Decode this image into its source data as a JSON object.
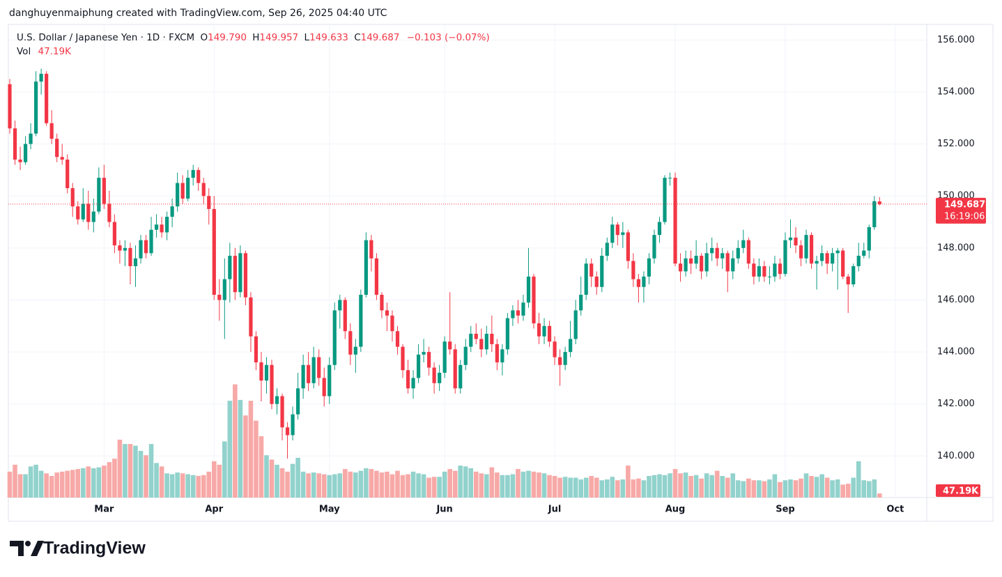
{
  "header": {
    "caption": "danghuyenmaiphung created with TradingView.com, Sep 26, 2025 04:40 UTC",
    "logo": "TradingView"
  },
  "legend": {
    "symbol": "U.S. Dollar / Japanese Yen · 1D · FXCM",
    "open_key": "O",
    "open": "149.790",
    "high_key": "H",
    "high": "149.957",
    "low_key": "L",
    "low": "149.633",
    "close_key": "C",
    "close": "149.687",
    "change": "−0.103 (−0.07%)",
    "volume_key": "Vol",
    "volume": "47.19K"
  },
  "chart_data": {
    "type": "candlestick",
    "up_color": "#089981",
    "down_color": "#f23645",
    "up_volume_color": "#92d2cc",
    "down_volume_color": "#f7a9a7",
    "ylim": [
      138.4,
      156.6
    ],
    "yticks": [
      {
        "value": 140,
        "label": "140.000"
      },
      {
        "value": 142,
        "label": "142.000"
      },
      {
        "value": 144,
        "label": "144.000"
      },
      {
        "value": 146,
        "label": "146.000"
      },
      {
        "value": 148,
        "label": "148.000"
      },
      {
        "value": 150,
        "label": "150.000"
      },
      {
        "value": 152,
        "label": "152.000"
      },
      {
        "value": 154,
        "label": "154.000"
      },
      {
        "value": 156,
        "label": "156.000"
      }
    ],
    "xticks": [
      {
        "value": 18,
        "label": "Mar"
      },
      {
        "value": 39,
        "label": "Apr"
      },
      {
        "value": 61,
        "label": "May"
      },
      {
        "value": 83,
        "label": "Jun"
      },
      {
        "value": 104,
        "label": "Jul"
      },
      {
        "value": 127,
        "label": "Aug"
      },
      {
        "value": 148,
        "label": "Sep"
      },
      {
        "value": 169,
        "label": "Oct"
      }
    ],
    "grid": true,
    "last_price": {
      "value": 149.687,
      "label": "149.687"
    },
    "countdown": "16:19:06",
    "volume_axis_label": "47.19K",
    "ohlc": [
      [
        154.3,
        154.5,
        152.4,
        152.6
      ],
      [
        152.6,
        152.9,
        151.2,
        151.4
      ],
      [
        151.4,
        151.9,
        151.0,
        151.3
      ],
      [
        151.3,
        152.3,
        151.2,
        152.0
      ],
      [
        152.0,
        152.8,
        151.8,
        152.4
      ],
      [
        152.4,
        154.8,
        152.3,
        154.4
      ],
      [
        154.4,
        154.9,
        153.9,
        154.7
      ],
      [
        154.7,
        154.8,
        152.7,
        152.8
      ],
      [
        152.8,
        153.3,
        152.0,
        152.2
      ],
      [
        152.2,
        152.4,
        151.3,
        151.5
      ],
      [
        151.5,
        152.0,
        151.2,
        151.4
      ],
      [
        151.4,
        151.6,
        150.1,
        150.3
      ],
      [
        150.3,
        150.5,
        149.2,
        149.6
      ],
      [
        149.6,
        149.8,
        148.9,
        149.1
      ],
      [
        149.1,
        150.3,
        149.0,
        149.7
      ],
      [
        149.7,
        150.2,
        148.7,
        149.0
      ],
      [
        149.0,
        149.9,
        148.6,
        149.4
      ],
      [
        149.4,
        151.1,
        149.3,
        150.7
      ],
      [
        150.7,
        151.2,
        149.5,
        149.7
      ],
      [
        149.7,
        150.2,
        148.8,
        149.0
      ],
      [
        149.0,
        149.3,
        147.8,
        148.1
      ],
      [
        148.1,
        148.3,
        147.4,
        147.9
      ],
      [
        147.9,
        148.3,
        147.3,
        148.0
      ],
      [
        148.0,
        148.2,
        146.6,
        147.3
      ],
      [
        147.3,
        148.1,
        146.5,
        147.6
      ],
      [
        147.6,
        148.5,
        147.4,
        148.3
      ],
      [
        148.3,
        148.5,
        147.6,
        147.8
      ],
      [
        147.8,
        149.2,
        147.7,
        148.7
      ],
      [
        148.7,
        149.3,
        148.4,
        148.9
      ],
      [
        148.9,
        149.2,
        148.4,
        148.6
      ],
      [
        148.6,
        149.4,
        148.3,
        149.2
      ],
      [
        149.2,
        149.9,
        148.8,
        149.6
      ],
      [
        149.6,
        150.9,
        149.4,
        150.5
      ],
      [
        150.5,
        150.8,
        149.7,
        149.9
      ],
      [
        149.9,
        151.0,
        149.8,
        150.7
      ],
      [
        150.7,
        151.2,
        150.4,
        151.0
      ],
      [
        151.0,
        151.1,
        150.2,
        150.5
      ],
      [
        150.5,
        150.7,
        149.7,
        150.0
      ],
      [
        150.0,
        150.3,
        148.9,
        149.5
      ],
      [
        149.5,
        150.0,
        146.0,
        146.2
      ],
      [
        146.2,
        146.8,
        145.2,
        146.0
      ],
      [
        146.0,
        147.6,
        144.5,
        146.8
      ],
      [
        146.8,
        148.2,
        145.9,
        147.7
      ],
      [
        147.7,
        148.0,
        146.0,
        146.3
      ],
      [
        146.3,
        148.1,
        146.1,
        147.8
      ],
      [
        147.8,
        147.9,
        145.8,
        146.1
      ],
      [
        146.1,
        146.3,
        144.0,
        144.6
      ],
      [
        144.6,
        144.8,
        143.3,
        143.6
      ],
      [
        143.6,
        144.0,
        142.1,
        142.9
      ],
      [
        142.9,
        143.8,
        142.4,
        143.5
      ],
      [
        143.5,
        143.7,
        141.8,
        142.0
      ],
      [
        142.0,
        142.6,
        141.6,
        142.3
      ],
      [
        142.3,
        142.4,
        140.6,
        141.1
      ],
      [
        141.1,
        141.3,
        139.9,
        140.8
      ],
      [
        140.8,
        141.9,
        140.6,
        141.6
      ],
      [
        141.6,
        143.2,
        141.4,
        142.6
      ],
      [
        142.6,
        143.9,
        142.2,
        143.5
      ],
      [
        143.5,
        144.0,
        142.5,
        142.8
      ],
      [
        142.8,
        144.2,
        142.6,
        143.8
      ],
      [
        143.8,
        144.1,
        142.7,
        143.0
      ],
      [
        143.0,
        143.4,
        141.9,
        142.3
      ],
      [
        142.3,
        143.8,
        142.0,
        143.5
      ],
      [
        143.5,
        145.9,
        143.3,
        145.6
      ],
      [
        145.6,
        146.2,
        144.9,
        146.0
      ],
      [
        146.0,
        146.1,
        144.5,
        144.8
      ],
      [
        144.8,
        145.1,
        143.5,
        143.9
      ],
      [
        143.9,
        144.5,
        143.2,
        144.2
      ],
      [
        144.2,
        146.4,
        144.0,
        146.2
      ],
      [
        146.2,
        148.6,
        146.1,
        148.3
      ],
      [
        148.3,
        148.5,
        147.1,
        147.6
      ],
      [
        147.6,
        147.8,
        146.0,
        146.2
      ],
      [
        146.2,
        146.3,
        145.3,
        145.6
      ],
      [
        145.6,
        145.9,
        144.8,
        145.4
      ],
      [
        145.4,
        145.6,
        144.4,
        144.8
      ],
      [
        144.8,
        145.0,
        143.9,
        144.2
      ],
      [
        144.2,
        144.3,
        143.0,
        143.3
      ],
      [
        143.3,
        143.7,
        142.4,
        142.6
      ],
      [
        142.6,
        143.3,
        142.2,
        143.0
      ],
      [
        143.0,
        144.3,
        142.8,
        143.9
      ],
      [
        143.9,
        144.5,
        143.6,
        144.0
      ],
      [
        144.0,
        144.2,
        143.1,
        143.4
      ],
      [
        143.4,
        143.6,
        142.4,
        142.8
      ],
      [
        142.8,
        143.5,
        142.5,
        143.2
      ],
      [
        143.2,
        144.6,
        143.0,
        144.4
      ],
      [
        144.4,
        146.3,
        143.9,
        144.1
      ],
      [
        144.1,
        144.3,
        142.4,
        142.6
      ],
      [
        142.6,
        143.7,
        142.4,
        143.5
      ],
      [
        143.5,
        144.5,
        143.3,
        144.2
      ],
      [
        144.2,
        145.0,
        144.0,
        144.7
      ],
      [
        144.7,
        145.1,
        144.3,
        144.5
      ],
      [
        144.5,
        144.9,
        143.8,
        144.1
      ],
      [
        144.1,
        145.0,
        143.9,
        144.7
      ],
      [
        144.7,
        145.4,
        144.0,
        144.3
      ],
      [
        144.3,
        144.5,
        143.3,
        143.6
      ],
      [
        143.6,
        144.3,
        143.1,
        144.1
      ],
      [
        144.1,
        145.5,
        143.9,
        145.3
      ],
      [
        145.3,
        145.8,
        145.0,
        145.6
      ],
      [
        145.6,
        146.0,
        145.1,
        145.4
      ],
      [
        145.4,
        146.2,
        145.2,
        145.9
      ],
      [
        145.9,
        148.0,
        145.7,
        146.9
      ],
      [
        146.9,
        147.0,
        144.9,
        145.1
      ],
      [
        145.1,
        145.5,
        144.3,
        144.6
      ],
      [
        144.6,
        145.3,
        144.3,
        145.0
      ],
      [
        145.0,
        145.2,
        144.2,
        144.4
      ],
      [
        144.4,
        144.6,
        143.5,
        143.8
      ],
      [
        143.8,
        144.1,
        142.7,
        143.5
      ],
      [
        143.5,
        144.2,
        143.3,
        144.0
      ],
      [
        144.0,
        145.2,
        143.8,
        144.5
      ],
      [
        144.5,
        146.0,
        144.3,
        145.6
      ],
      [
        145.6,
        146.9,
        145.4,
        146.2
      ],
      [
        146.2,
        147.6,
        146.0,
        147.4
      ],
      [
        147.4,
        147.6,
        146.5,
        146.9
      ],
      [
        146.9,
        147.1,
        146.2,
        146.5
      ],
      [
        146.5,
        148.0,
        146.3,
        147.7
      ],
      [
        147.7,
        148.4,
        147.5,
        148.2
      ],
      [
        148.2,
        149.2,
        148.0,
        148.9
      ],
      [
        148.9,
        149.0,
        148.1,
        148.5
      ],
      [
        148.5,
        149.0,
        148.0,
        148.6
      ],
      [
        148.6,
        148.7,
        147.2,
        147.5
      ],
      [
        147.5,
        147.8,
        146.5,
        146.8
      ],
      [
        146.8,
        147.0,
        145.9,
        146.5
      ],
      [
        146.5,
        147.1,
        145.9,
        146.9
      ],
      [
        146.9,
        147.8,
        146.6,
        147.6
      ],
      [
        147.6,
        148.7,
        147.4,
        148.5
      ],
      [
        148.5,
        149.2,
        148.2,
        149.0
      ],
      [
        149.0,
        150.8,
        148.9,
        150.7
      ],
      [
        150.7,
        150.9,
        150.4,
        150.7
      ],
      [
        150.7,
        150.9,
        147.3,
        147.4
      ],
      [
        147.4,
        147.8,
        146.7,
        147.1
      ],
      [
        147.1,
        147.9,
        146.9,
        147.6
      ],
      [
        147.6,
        147.9,
        147.0,
        147.4
      ],
      [
        147.4,
        148.3,
        147.2,
        147.7
      ],
      [
        147.7,
        147.8,
        146.8,
        147.1
      ],
      [
        147.1,
        148.2,
        146.9,
        147.8
      ],
      [
        147.8,
        148.4,
        147.5,
        148.0
      ],
      [
        148.0,
        148.2,
        147.3,
        147.6
      ],
      [
        147.6,
        148.0,
        147.2,
        147.8
      ],
      [
        147.8,
        147.9,
        146.3,
        147.1
      ],
      [
        147.1,
        147.9,
        146.8,
        147.6
      ],
      [
        147.6,
        148.3,
        147.4,
        148.0
      ],
      [
        148.0,
        148.7,
        147.8,
        148.3
      ],
      [
        148.3,
        148.4,
        147.2,
        147.4
      ],
      [
        147.4,
        147.6,
        146.6,
        146.9
      ],
      [
        146.9,
        147.6,
        146.7,
        147.3
      ],
      [
        147.3,
        147.5,
        146.7,
        146.9
      ],
      [
        146.9,
        147.3,
        146.6,
        146.9
      ],
      [
        146.9,
        147.7,
        146.7,
        147.4
      ],
      [
        147.4,
        147.6,
        146.8,
        147.0
      ],
      [
        147.0,
        148.6,
        146.9,
        148.3
      ],
      [
        148.3,
        149.1,
        148.0,
        148.4
      ],
      [
        148.4,
        148.8,
        147.8,
        148.1
      ],
      [
        148.1,
        148.3,
        147.3,
        147.6
      ],
      [
        147.6,
        148.7,
        147.4,
        148.5
      ],
      [
        148.5,
        148.6,
        147.2,
        147.4
      ],
      [
        147.4,
        147.7,
        146.4,
        147.5
      ],
      [
        147.5,
        148.1,
        147.3,
        147.8
      ],
      [
        147.8,
        147.9,
        147.0,
        147.4
      ],
      [
        147.4,
        148.0,
        147.1,
        147.8
      ],
      [
        147.8,
        148.0,
        146.4,
        147.9
      ],
      [
        147.9,
        148.0,
        146.8,
        146.9
      ],
      [
        146.9,
        147.0,
        145.5,
        146.6
      ],
      [
        146.6,
        147.4,
        146.5,
        147.3
      ],
      [
        147.3,
        148.2,
        147.1,
        147.7
      ],
      [
        147.7,
        148.2,
        147.6,
        147.9
      ],
      [
        147.9,
        148.9,
        147.6,
        148.8
      ],
      [
        148.8,
        150.0,
        148.7,
        149.8
      ],
      [
        149.79,
        149.957,
        149.633,
        149.687
      ]
    ],
    "volume": [
      300,
      380,
      270,
      270,
      360,
      380,
      310,
      280,
      250,
      290,
      300,
      310,
      320,
      330,
      340,
      360,
      340,
      350,
      370,
      410,
      450,
      670,
      620,
      620,
      600,
      540,
      490,
      620,
      400,
      360,
      280,
      270,
      290,
      280,
      270,
      260,
      250,
      260,
      300,
      420,
      380,
      650,
      1120,
      1310,
      1130,
      950,
      1120,
      890,
      710,
      490,
      440,
      380,
      340,
      300,
      390,
      460,
      300,
      280,
      290,
      280,
      270,
      260,
      270,
      280,
      330,
      300,
      290,
      310,
      340,
      330,
      310,
      290,
      300,
      270,
      310,
      260,
      270,
      300,
      280,
      270,
      230,
      240,
      240,
      300,
      330,
      310,
      370,
      360,
      340,
      300,
      280,
      270,
      350,
      290,
      260,
      260,
      270,
      330,
      300,
      310,
      300,
      290,
      280,
      260,
      250,
      230,
      240,
      230,
      230,
      210,
      230,
      250,
      230,
      200,
      210,
      240,
      200,
      210,
      370,
      210,
      220,
      200,
      250,
      260,
      270,
      260,
      280,
      330,
      280,
      290,
      250,
      260,
      220,
      280,
      260,
      310,
      250,
      230,
      280,
      200,
      190,
      220,
      200,
      200,
      190,
      210,
      270,
      180,
      200,
      210,
      200,
      220,
      280,
      250,
      240,
      270,
      230,
      200,
      210,
      150,
      160,
      230,
      420,
      200,
      190,
      210,
      47.19
    ]
  }
}
